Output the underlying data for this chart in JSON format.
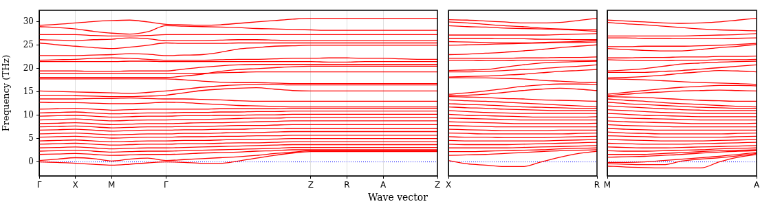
{
  "chart_data": [
    {
      "type": "line",
      "ylabel": "Frequency (THz)",
      "xlabel": "Wave vector",
      "categories": [
        "Γ",
        null,
        "X",
        null,
        "M",
        null,
        null,
        "Γ",
        null,
        null,
        null,
        null,
        null,
        null,
        null,
        "Z",
        null,
        "R",
        null,
        "A",
        null,
        null,
        "Z"
      ],
      "ylim": [
        -3,
        32.5
      ],
      "yticks": [
        0,
        5,
        10,
        15,
        20,
        25,
        30
      ],
      "grid": "x",
      "legend": false,
      "ref_lines": [
        {
          "axis": "y",
          "value": 0,
          "color": "#0000ff",
          "line_style": "dotted"
        }
      ],
      "series": [
        {
          "color": "#ff0000",
          "values": [
            29.3,
            29.5,
            29.8,
            30.1,
            30.3,
            30.4,
            30.0,
            29.5,
            29.4,
            29.3,
            29.4,
            29.7,
            30.0,
            30.3,
            30.6,
            30.8,
            30.8,
            30.8,
            30.8,
            30.8,
            30.8,
            30.8,
            30.8
          ]
        },
        {
          "color": "#ff0000",
          "values": [
            29.0,
            28.8,
            28.5,
            28.0,
            27.6,
            27.4,
            27.9,
            29.2,
            29.1,
            29.0,
            28.9,
            28.8,
            28.6,
            28.5,
            28.4,
            28.3,
            28.2,
            28.2,
            28.2,
            28.2,
            28.2,
            28.2,
            28.2
          ]
        },
        {
          "color": "#ff0000",
          "values": [
            27.3,
            27.3,
            27.3,
            27.1,
            27.0,
            27.0,
            27.1,
            27.3,
            27.3,
            27.3,
            27.3,
            27.3,
            27.3,
            27.3,
            27.3,
            27.3,
            27.3,
            27.3,
            27.3,
            27.3,
            27.3,
            27.3,
            27.3
          ]
        },
        {
          "color": "#ff0000",
          "values": [
            26.2,
            26.1,
            26.0,
            26.2,
            26.3,
            26.6,
            26.4,
            26.0,
            26.0,
            26.0,
            26.1,
            26.2,
            26.2,
            26.1,
            26.0,
            26.0,
            26.0,
            26.0,
            26.0,
            26.0,
            26.0,
            26.0,
            26.0
          ]
        },
        {
          "color": "#ff0000",
          "values": [
            25.5,
            25.1,
            24.8,
            24.5,
            24.3,
            24.6,
            25.0,
            25.5,
            25.4,
            25.4,
            25.4,
            25.5,
            25.5,
            25.5,
            25.5,
            25.5,
            25.5,
            25.5,
            25.5,
            25.5,
            25.5,
            25.5,
            25.5
          ]
        },
        {
          "color": "#ff0000",
          "values": [
            22.8,
            22.8,
            22.8,
            22.9,
            23.0,
            23.2,
            23.1,
            22.8,
            22.9,
            23.0,
            23.5,
            24.2,
            24.5,
            24.8,
            24.9,
            25.0,
            25.0,
            25.0,
            25.0,
            25.0,
            25.0,
            25.0,
            25.0
          ]
        },
        {
          "color": "#ff0000",
          "values": [
            21.8,
            21.9,
            22.0,
            22.2,
            22.3,
            22.2,
            22.0,
            21.8,
            21.8,
            21.8,
            21.9,
            22.0,
            22.0,
            22.1,
            22.2,
            22.2,
            22.3,
            22.3,
            22.2,
            22.2,
            22.1,
            22.0,
            22.0
          ]
        },
        {
          "color": "#ff0000",
          "values": [
            21.5,
            21.5,
            21.5,
            21.5,
            21.5,
            21.6,
            21.6,
            21.5,
            21.5,
            21.5,
            21.5,
            21.5,
            21.5,
            21.5,
            21.5,
            21.5,
            21.4,
            21.4,
            21.5,
            21.5,
            21.5,
            21.5,
            21.5
          ]
        },
        {
          "color": "#ff0000",
          "values": [
            19.5,
            19.5,
            19.5,
            19.4,
            19.4,
            19.5,
            19.5,
            19.5,
            19.9,
            20.3,
            20.6,
            20.8,
            20.9,
            20.9,
            20.9,
            20.9,
            20.9,
            20.9,
            20.9,
            20.9,
            20.9,
            20.9,
            20.9
          ]
        },
        {
          "color": "#ff0000",
          "values": [
            19.0,
            19.0,
            19.0,
            19.0,
            19.0,
            19.0,
            19.0,
            19.0,
            19.0,
            19.0,
            19.1,
            19.2,
            19.3,
            19.3,
            19.3,
            19.3,
            19.3,
            19.3,
            19.3,
            19.3,
            19.3,
            19.3,
            19.3
          ]
        },
        {
          "color": "#ff0000",
          "values": [
            18.1,
            18.1,
            18.1,
            18.1,
            18.1,
            18.1,
            18.1,
            18.1,
            18.4,
            18.8,
            19.4,
            19.8,
            20.0,
            20.2,
            20.4,
            20.5,
            20.5,
            20.5,
            20.5,
            20.5,
            20.5,
            20.5,
            20.5
          ]
        },
        {
          "color": "#ff0000",
          "values": [
            17.8,
            17.8,
            17.8,
            17.8,
            17.8,
            17.8,
            17.8,
            17.8,
            17.6,
            17.3,
            17.1,
            17.0,
            17.0,
            16.9,
            16.8,
            16.8,
            16.8,
            16.8,
            16.8,
            16.8,
            16.8,
            16.8,
            16.8
          ]
        },
        {
          "color": "#ff0000",
          "values": [
            15.2,
            15.1,
            15.0,
            14.9,
            14.8,
            14.7,
            14.9,
            15.2,
            15.6,
            16.0,
            16.3,
            16.5,
            16.6,
            16.6,
            16.5,
            16.5,
            16.5,
            16.5,
            16.5,
            16.5,
            16.5,
            16.5,
            16.5
          ]
        },
        {
          "color": "#ff0000",
          "values": [
            14.3,
            14.3,
            14.2,
            14.1,
            14.0,
            14.0,
            14.1,
            14.3,
            14.8,
            15.3,
            15.6,
            15.8,
            15.9,
            15.6,
            15.3,
            15.2,
            15.2,
            15.2,
            15.2,
            15.2,
            15.2,
            15.2,
            15.2
          ]
        },
        {
          "color": "#ff0000",
          "values": [
            13.5,
            13.5,
            13.5,
            13.6,
            13.6,
            13.7,
            13.6,
            13.5,
            13.5,
            13.4,
            13.3,
            13.1,
            13.0,
            13.0,
            13.0,
            13.0,
            13.0,
            13.0,
            13.0,
            13.0,
            13.0,
            13.0,
            13.0
          ]
        },
        {
          "color": "#ff0000",
          "values": [
            12.8,
            12.7,
            12.7,
            12.6,
            12.5,
            12.5,
            12.6,
            12.8,
            12.7,
            12.5,
            12.3,
            12.1,
            12.0,
            11.9,
            11.8,
            11.8,
            11.8,
            11.8,
            11.8,
            11.8,
            11.8,
            11.8,
            11.8
          ]
        },
        {
          "color": "#ff0000",
          "values": [
            11.3,
            11.4,
            11.5,
            11.3,
            11.1,
            11.2,
            11.3,
            11.3,
            11.3,
            11.3,
            11.4,
            11.4,
            11.4,
            11.4,
            11.5,
            11.5,
            11.5,
            11.5,
            11.5,
            11.5,
            11.5,
            11.5,
            11.5
          ]
        },
        {
          "color": "#ff0000",
          "values": [
            10.5,
            10.6,
            10.7,
            10.5,
            10.3,
            10.4,
            10.5,
            10.5,
            10.6,
            10.6,
            10.7,
            10.7,
            10.8,
            10.8,
            10.9,
            10.9,
            10.9,
            10.9,
            10.9,
            10.9,
            10.9,
            10.9,
            10.9
          ]
        },
        {
          "color": "#ff0000",
          "values": [
            9.8,
            9.9,
            10.0,
            9.8,
            9.6,
            9.7,
            9.8,
            9.8,
            9.9,
            9.9,
            10.0,
            10.0,
            10.1,
            10.1,
            10.2,
            10.2,
            10.2,
            10.2,
            10.2,
            10.2,
            10.2,
            10.2,
            10.2
          ]
        },
        {
          "color": "#ff0000",
          "values": [
            9.0,
            9.1,
            9.2,
            9.0,
            8.8,
            8.9,
            9.0,
            9.0,
            9.1,
            9.1,
            9.2,
            9.3,
            9.4,
            9.4,
            9.5,
            9.5,
            9.5,
            9.5,
            9.5,
            9.5,
            9.5,
            9.5,
            9.5
          ]
        },
        {
          "color": "#ff0000",
          "values": [
            8.2,
            8.3,
            8.4,
            8.2,
            8.0,
            8.1,
            8.2,
            8.2,
            8.3,
            8.4,
            8.4,
            8.5,
            8.6,
            8.7,
            8.8,
            8.8,
            8.8,
            8.8,
            8.8,
            8.8,
            8.8,
            8.8,
            8.8
          ]
        },
        {
          "color": "#ff0000",
          "values": [
            7.5,
            7.6,
            7.7,
            7.5,
            7.3,
            7.4,
            7.5,
            7.5,
            7.6,
            7.6,
            7.7,
            7.8,
            7.8,
            7.9,
            8.0,
            8.0,
            8.0,
            8.0,
            8.0,
            8.0,
            8.0,
            8.0,
            8.0
          ]
        },
        {
          "color": "#ff0000",
          "values": [
            6.8,
            6.9,
            7.0,
            6.8,
            6.6,
            6.7,
            6.8,
            6.8,
            6.9,
            6.9,
            7.0,
            7.0,
            7.1,
            7.1,
            7.2,
            7.2,
            7.2,
            7.2,
            7.2,
            7.2,
            7.2,
            7.2,
            7.2
          ]
        },
        {
          "color": "#ff0000",
          "values": [
            6.0,
            6.1,
            6.2,
            6.0,
            5.8,
            5.9,
            6.0,
            6.0,
            6.1,
            6.1,
            6.2,
            6.3,
            6.3,
            6.4,
            6.5,
            6.5,
            6.5,
            6.5,
            6.5,
            6.5,
            6.5,
            6.5,
            6.5
          ]
        },
        {
          "color": "#ff0000",
          "values": [
            5.3,
            5.4,
            5.5,
            5.3,
            5.1,
            5.2,
            5.3,
            5.3,
            5.4,
            5.4,
            5.5,
            5.5,
            5.6,
            5.6,
            5.7,
            5.7,
            5.7,
            5.7,
            5.7,
            5.7,
            5.7,
            5.7,
            5.7
          ]
        },
        {
          "color": "#ff0000",
          "values": [
            4.5,
            4.6,
            4.7,
            4.5,
            4.3,
            4.4,
            4.5,
            4.5,
            4.6,
            4.6,
            4.7,
            4.8,
            4.8,
            4.9,
            5.0,
            5.0,
            5.0,
            5.0,
            5.0,
            5.0,
            5.0,
            5.0,
            5.0
          ]
        },
        {
          "color": "#ff0000",
          "values": [
            3.8,
            3.9,
            4.0,
            3.8,
            3.6,
            3.7,
            3.8,
            3.8,
            3.9,
            3.9,
            4.0,
            4.1,
            4.1,
            4.2,
            4.3,
            4.3,
            4.3,
            4.3,
            4.3,
            4.3,
            4.3,
            4.3,
            4.3
          ]
        },
        {
          "color": "#ff0000",
          "values": [
            3.0,
            3.1,
            3.2,
            3.0,
            2.8,
            2.9,
            3.0,
            3.0,
            3.1,
            3.2,
            3.3,
            3.4,
            3.5,
            3.6,
            3.7,
            3.7,
            3.7,
            3.7,
            3.7,
            3.7,
            3.7,
            3.7,
            3.7
          ]
        },
        {
          "color": "#ff0000",
          "values": [
            2.3,
            2.4,
            2.5,
            2.3,
            2.1,
            2.2,
            2.3,
            2.3,
            2.4,
            2.5,
            2.6,
            2.7,
            2.8,
            2.9,
            3.1,
            3.1,
            3.1,
            3.1,
            3.1,
            3.1,
            3.1,
            3.1,
            3.1
          ]
        },
        {
          "color": "#ff0000",
          "values": [
            1.6,
            1.7,
            1.8,
            1.6,
            1.4,
            1.5,
            1.6,
            1.6,
            1.7,
            1.9,
            2.0,
            2.1,
            2.3,
            2.4,
            2.6,
            2.6,
            2.6,
            2.6,
            2.6,
            2.6,
            2.6,
            2.6,
            2.6
          ]
        },
        {
          "color": "#ff0000",
          "values": [
            0.3,
            0.6,
            0.9,
            0.7,
            0.2,
            0.6,
            0.8,
            0.3,
            0.5,
            0.7,
            0.9,
            1.1,
            1.4,
            1.8,
            2.1,
            2.4,
            2.4,
            2.4,
            2.4,
            2.4,
            2.4,
            2.4,
            2.4
          ]
        },
        {
          "color": "#ff0000",
          "values": [
            0,
            -0.1,
            -0.3,
            -0.5,
            -0.7,
            -0.5,
            -0.2,
            0,
            -0.1,
            -0.3,
            -0.3,
            0.2,
            0.8,
            1.4,
            1.9,
            2.2,
            2.2,
            2.2,
            2.2,
            2.2,
            2.2,
            2.2,
            2.2
          ]
        }
      ]
    },
    {
      "type": "line",
      "categories": [
        "X",
        null,
        null,
        null,
        null,
        null,
        null,
        null,
        "R"
      ],
      "ylim": [
        -3,
        32.5
      ],
      "yticks": [
        0,
        5,
        10,
        15,
        20,
        25,
        30
      ],
      "tick_labels": "x",
      "legend": false,
      "ref_lines": [
        {
          "axis": "y",
          "value": 0,
          "color": "#0000ff",
          "line_style": "dotted"
        }
      ],
      "series": [
        {
          "color": "#ff0000",
          "values": [
            30.5,
            30.4,
            30.2,
            30.0,
            29.8,
            29.8,
            29.9,
            30.3,
            30.8
          ]
        },
        {
          "color": "#ff0000",
          "values": [
            30.0,
            29.8,
            29.5,
            29.2,
            29.0,
            28.7,
            28.5,
            28.4,
            28.3
          ]
        },
        {
          "color": "#ff0000",
          "values": [
            29.2,
            29.0,
            28.9,
            28.7,
            28.6,
            28.5,
            28.4,
            28.2,
            28.0
          ]
        },
        {
          "color": "#ff0000",
          "values": [
            27.2,
            27.2,
            27.2,
            27.2,
            27.2,
            27.2,
            27.3,
            27.4,
            27.5
          ]
        },
        {
          "color": "#ff0000",
          "values": [
            26.5,
            26.5,
            26.5,
            26.4,
            26.4,
            26.3,
            26.3,
            26.2,
            26.2
          ]
        },
        {
          "color": "#ff0000",
          "values": [
            25.8,
            25.7,
            25.6,
            25.5,
            25.5,
            25.6,
            25.7,
            25.8,
            26.0
          ]
        },
        {
          "color": "#ff0000",
          "values": [
            25.0,
            25.1,
            25.2,
            25.3,
            25.4,
            25.5,
            25.6,
            25.6,
            25.7
          ]
        },
        {
          "color": "#ff0000",
          "values": [
            23.0,
            23.1,
            23.3,
            23.5,
            23.8,
            24.1,
            24.5,
            24.8,
            25.1
          ]
        },
        {
          "color": "#ff0000",
          "values": [
            22.2,
            22.2,
            22.2,
            22.2,
            22.3,
            22.3,
            22.4,
            22.4,
            22.5
          ]
        },
        {
          "color": "#ff0000",
          "values": [
            21.8,
            21.8,
            21.7,
            21.7,
            21.8,
            21.8,
            21.8,
            21.8,
            21.8
          ]
        },
        {
          "color": "#ff0000",
          "values": [
            19.6,
            19.7,
            19.8,
            20.3,
            20.8,
            21.2,
            21.4,
            21.5,
            21.6
          ]
        },
        {
          "color": "#ff0000",
          "values": [
            19.3,
            19.3,
            19.4,
            19.6,
            19.8,
            20.0,
            20.3,
            20.5,
            20.8
          ]
        },
        {
          "color": "#ff0000",
          "values": [
            18.2,
            18.3,
            18.4,
            18.6,
            18.8,
            19.1,
            19.4,
            19.6,
            19.8
          ]
        },
        {
          "color": "#ff0000",
          "values": [
            18.0,
            18.0,
            18.0,
            17.9,
            17.8,
            17.5,
            17.3,
            17.1,
            17.0
          ]
        },
        {
          "color": "#ff0000",
          "values": [
            14.5,
            14.8,
            15.2,
            15.7,
            16.2,
            16.5,
            16.7,
            16.7,
            16.6
          ]
        },
        {
          "color": "#ff0000",
          "values": [
            14.2,
            14.3,
            14.5,
            14.9,
            15.3,
            15.6,
            15.8,
            15.6,
            15.3
          ]
        },
        {
          "color": "#ff0000",
          "values": [
            14.0,
            13.9,
            13.8,
            13.6,
            13.5,
            13.3,
            13.2,
            13.1,
            13.0
          ]
        },
        {
          "color": "#ff0000",
          "values": [
            13.3,
            13.1,
            13.0,
            12.8,
            12.6,
            12.4,
            12.2,
            12.0,
            11.8
          ]
        },
        {
          "color": "#ff0000",
          "values": [
            12.5,
            12.3,
            12.2,
            12.0,
            11.8,
            11.7,
            11.6,
            11.5,
            11.5
          ]
        },
        {
          "color": "#ff0000",
          "values": [
            11.8,
            11.6,
            11.5,
            11.3,
            11.2,
            11.1,
            11.0,
            11.0,
            11.0
          ]
        },
        {
          "color": "#ff0000",
          "values": [
            11.0,
            10.8,
            10.6,
            10.5,
            10.4,
            10.4,
            10.4,
            10.4,
            10.4
          ]
        },
        {
          "color": "#ff0000",
          "values": [
            10.2,
            10.0,
            9.9,
            9.8,
            9.7,
            9.6,
            9.6,
            9.6,
            9.7
          ]
        },
        {
          "color": "#ff0000",
          "values": [
            9.4,
            9.3,
            9.2,
            9.1,
            9.0,
            9.0,
            9.0,
            9.0,
            9.0
          ]
        },
        {
          "color": "#ff0000",
          "values": [
            8.6,
            8.5,
            8.4,
            8.3,
            8.2,
            8.2,
            8.2,
            8.2,
            8.3
          ]
        },
        {
          "color": "#ff0000",
          "values": [
            7.8,
            7.7,
            7.6,
            7.5,
            7.5,
            7.5,
            7.5,
            7.5,
            7.5
          ]
        },
        {
          "color": "#ff0000",
          "values": [
            7.0,
            6.9,
            6.8,
            6.7,
            6.7,
            6.7,
            6.8,
            6.8,
            6.8
          ]
        },
        {
          "color": "#ff0000",
          "values": [
            6.2,
            6.1,
            6.0,
            6.0,
            6.0,
            6.0,
            6.0,
            6.1,
            6.2
          ]
        },
        {
          "color": "#ff0000",
          "values": [
            5.4,
            5.3,
            5.3,
            5.2,
            5.2,
            5.2,
            5.3,
            5.4,
            5.5
          ]
        },
        {
          "color": "#ff0000",
          "values": [
            4.6,
            4.5,
            4.5,
            4.5,
            4.5,
            4.5,
            4.6,
            4.7,
            4.8
          ]
        },
        {
          "color": "#ff0000",
          "values": [
            3.8,
            3.7,
            3.7,
            3.7,
            3.8,
            3.9,
            4.0,
            4.1,
            4.2
          ]
        },
        {
          "color": "#ff0000",
          "values": [
            3.0,
            3.0,
            3.0,
            3.0,
            3.1,
            3.2,
            3.3,
            3.4,
            3.5
          ]
        },
        {
          "color": "#ff0000",
          "values": [
            2.2,
            2.2,
            2.3,
            2.4,
            2.5,
            2.6,
            2.8,
            2.9,
            3.0
          ]
        },
        {
          "color": "#ff0000",
          "values": [
            1.4,
            1.5,
            1.6,
            1.8,
            2.0,
            2.2,
            2.4,
            2.5,
            2.6
          ]
        },
        {
          "color": "#ff0000",
          "values": [
            0.3,
            -0.4,
            -0.7,
            -1.0,
            -1.0,
            0,
            1.0,
            1.8,
            2.3
          ]
        }
      ]
    },
    {
      "type": "line",
      "categories": [
        "M",
        null,
        null,
        null,
        null,
        null,
        null,
        null,
        "A"
      ],
      "ylim": [
        -3,
        32.5
      ],
      "yticks": [
        0,
        5,
        10,
        15,
        20,
        25,
        30
      ],
      "tick_labels": "x",
      "legend": false,
      "ref_lines": [
        {
          "axis": "y",
          "value": 0,
          "color": "#0000ff",
          "line_style": "dotted"
        }
      ],
      "series": [
        {
          "color": "#ff0000",
          "values": [
            30.4,
            30.2,
            30.0,
            29.8,
            29.7,
            29.8,
            30.0,
            30.4,
            30.8
          ]
        },
        {
          "color": "#ff0000",
          "values": [
            29.9,
            29.6,
            29.4,
            29.1,
            28.8,
            28.5,
            28.3,
            28.2,
            28.1
          ]
        },
        {
          "color": "#ff0000",
          "values": [
            27.0,
            27.0,
            27.0,
            27.0,
            27.0,
            27.1,
            27.2,
            27.3,
            27.5
          ]
        },
        {
          "color": "#ff0000",
          "values": [
            26.6,
            26.6,
            26.5,
            26.5,
            26.4,
            26.4,
            26.4,
            26.5,
            26.6
          ]
        },
        {
          "color": "#ff0000",
          "values": [
            24.7,
            24.7,
            24.8,
            24.8,
            24.8,
            24.9,
            25.0,
            25.2,
            25.4
          ]
        },
        {
          "color": "#ff0000",
          "values": [
            24.3,
            24.1,
            23.9,
            23.8,
            23.8,
            24.1,
            24.5,
            24.8,
            25.2
          ]
        },
        {
          "color": "#ff0000",
          "values": [
            22.3,
            22.3,
            22.4,
            22.4,
            22.5,
            22.5,
            22.6,
            22.6,
            22.7
          ]
        },
        {
          "color": "#ff0000",
          "values": [
            21.9,
            21.8,
            21.7,
            21.7,
            21.8,
            21.8,
            21.9,
            21.9,
            22.0
          ]
        },
        {
          "color": "#ff0000",
          "values": [
            19.5,
            19.7,
            20.0,
            20.5,
            21.0,
            21.2,
            21.4,
            21.5,
            21.6
          ]
        },
        {
          "color": "#ff0000",
          "values": [
            19.2,
            19.2,
            19.2,
            19.4,
            19.6,
            19.9,
            20.2,
            20.5,
            20.8
          ]
        },
        {
          "color": "#ff0000",
          "values": [
            18.0,
            18.1,
            18.3,
            18.6,
            19.0,
            19.3,
            19.6,
            19.5,
            19.3
          ]
        },
        {
          "color": "#ff0000",
          "values": [
            17.8,
            17.7,
            17.6,
            17.4,
            17.2,
            17.0,
            16.9,
            16.8,
            16.6
          ]
        },
        {
          "color": "#ff0000",
          "values": [
            14.5,
            14.9,
            15.3,
            15.7,
            16.0,
            16.2,
            16.4,
            16.4,
            16.3
          ]
        },
        {
          "color": "#ff0000",
          "values": [
            14.2,
            14.5,
            14.8,
            15.0,
            15.2,
            15.3,
            15.4,
            15.3,
            15.2
          ]
        },
        {
          "color": "#ff0000",
          "values": [
            14.0,
            13.9,
            13.8,
            13.6,
            13.4,
            13.2,
            13.1,
            13.0,
            13.0
          ]
        },
        {
          "color": "#ff0000",
          "values": [
            13.5,
            13.2,
            13.0,
            12.7,
            12.5,
            12.3,
            12.1,
            11.9,
            11.8
          ]
        },
        {
          "color": "#ff0000",
          "values": [
            12.8,
            12.5,
            12.3,
            12.1,
            11.9,
            11.7,
            11.6,
            11.5,
            11.5
          ]
        },
        {
          "color": "#ff0000",
          "values": [
            12.0,
            11.8,
            11.6,
            11.4,
            11.2,
            11.1,
            11.0,
            11.0,
            11.0
          ]
        },
        {
          "color": "#ff0000",
          "values": [
            11.2,
            11.0,
            10.8,
            10.6,
            10.5,
            10.4,
            10.4,
            10.4,
            10.4
          ]
        },
        {
          "color": "#ff0000",
          "values": [
            10.4,
            10.2,
            10.0,
            9.9,
            9.8,
            9.7,
            9.7,
            9.7,
            9.7
          ]
        },
        {
          "color": "#ff0000",
          "values": [
            9.6,
            9.4,
            9.3,
            9.2,
            9.1,
            9.0,
            9.0,
            9.0,
            9.0
          ]
        },
        {
          "color": "#ff0000",
          "values": [
            8.8,
            8.6,
            8.5,
            8.4,
            8.3,
            8.2,
            8.2,
            8.2,
            8.3
          ]
        },
        {
          "color": "#ff0000",
          "values": [
            8.0,
            7.8,
            7.7,
            7.6,
            7.5,
            7.5,
            7.5,
            7.5,
            7.5
          ]
        },
        {
          "color": "#ff0000",
          "values": [
            7.2,
            7.0,
            6.9,
            6.8,
            6.8,
            6.8,
            6.8,
            6.8,
            6.8
          ]
        },
        {
          "color": "#ff0000",
          "values": [
            6.4,
            6.2,
            6.1,
            6.0,
            6.0,
            6.0,
            6.0,
            6.1,
            6.2
          ]
        },
        {
          "color": "#ff0000",
          "values": [
            5.6,
            5.5,
            5.4,
            5.3,
            5.3,
            5.3,
            5.3,
            5.4,
            5.5
          ]
        },
        {
          "color": "#ff0000",
          "values": [
            4.8,
            4.7,
            4.6,
            4.5,
            4.5,
            4.5,
            4.6,
            4.7,
            4.8
          ]
        },
        {
          "color": "#ff0000",
          "values": [
            4.0,
            3.9,
            3.8,
            3.8,
            3.8,
            3.9,
            4.0,
            4.1,
            4.2
          ]
        },
        {
          "color": "#ff0000",
          "values": [
            3.2,
            3.1,
            3.0,
            3.0,
            3.1,
            3.2,
            3.3,
            3.4,
            3.5
          ]
        },
        {
          "color": "#ff0000",
          "values": [
            2.4,
            2.3,
            2.3,
            2.4,
            2.5,
            2.6,
            2.8,
            2.9,
            3.0
          ]
        },
        {
          "color": "#ff0000",
          "values": [
            1.6,
            1.6,
            1.6,
            1.8,
            2.0,
            2.2,
            2.4,
            2.5,
            2.6
          ]
        },
        {
          "color": "#ff0000",
          "values": [
            1.0,
            1.1,
            1.2,
            1.4,
            1.6,
            1.9,
            2.1,
            2.3,
            2.4
          ]
        },
        {
          "color": "#ff0000",
          "values": [
            -0.1,
            -0.1,
            0,
            0.3,
            0.6,
            0.9,
            1.2,
            1.6,
            2.0
          ]
        },
        {
          "color": "#ff0000",
          "values": [
            -0.4,
            -0.5,
            -0.6,
            -0.6,
            0.2,
            0.6,
            0.9,
            1.3,
            1.8
          ]
        },
        {
          "color": "#ff0000",
          "values": [
            -0.9,
            -1.1,
            -1.2,
            -1.3,
            -1.3,
            -1.3,
            0,
            1.0,
            1.6
          ]
        }
      ]
    }
  ]
}
